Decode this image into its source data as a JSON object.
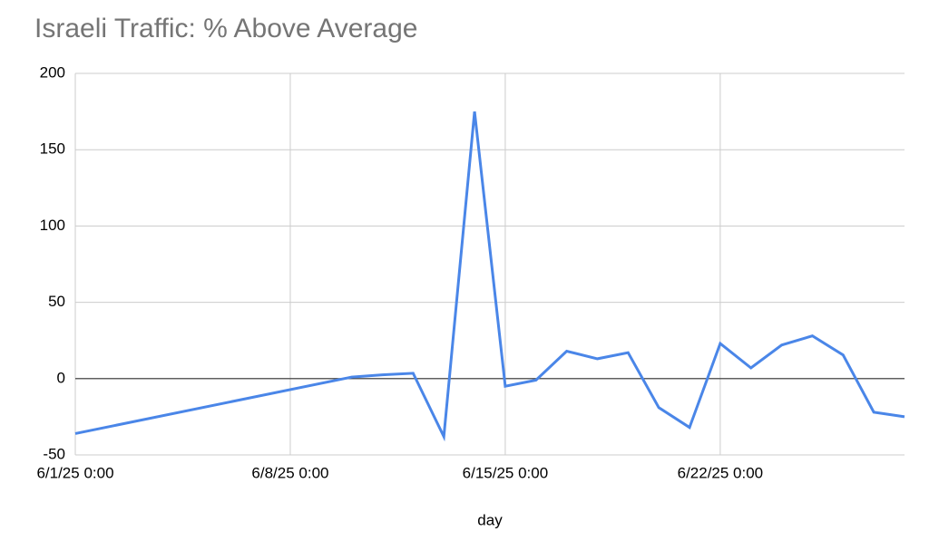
{
  "chart_data": {
    "type": "line",
    "title": "Israeli Traffic: % Above Average",
    "x_label": "day",
    "x": [
      "6/1/25 0:00",
      "6/10/25 0:00",
      "6/11/25 0:00",
      "6/12/25 0:00",
      "6/13/25 0:00",
      "6/14/25 0:00",
      "6/15/25 0:00",
      "6/16/25 0:00",
      "6/17/25 0:00",
      "6/18/25 0:00",
      "6/19/25 0:00",
      "6/20/25 0:00",
      "6/21/25 0:00",
      "6/22/25 0:00",
      "6/23/25 0:00",
      "6/24/25 0:00",
      "6/25/25 0:00",
      "6/26/25 0:00",
      "6/27/25 0:00",
      "6/28/25 0:00"
    ],
    "values": [
      -36,
      1,
      2.5,
      3.5,
      -38,
      175,
      -5,
      -1,
      18,
      13,
      17,
      -19,
      -32,
      23,
      7,
      22,
      28,
      15.5,
      -22,
      -25
    ],
    "color": "#4a86e8",
    "xlim": [
      "6/1/25 0:00",
      "6/28/25 0:00"
    ],
    "xticks": [
      "6/1/25 0:00",
      "6/8/25 0:00",
      "6/15/25 0:00",
      "6/22/25 0:00"
    ],
    "ylim": [
      -50,
      200
    ],
    "yticks": [
      -50,
      0,
      50,
      100,
      150,
      200
    ],
    "grid": true
  }
}
